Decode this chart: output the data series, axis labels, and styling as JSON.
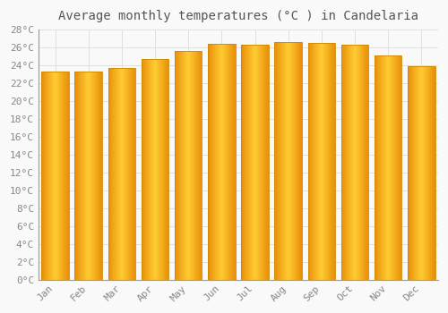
{
  "title": "Average monthly temperatures (°C ) in Candelaria",
  "months": [
    "Jan",
    "Feb",
    "Mar",
    "Apr",
    "May",
    "Jun",
    "Jul",
    "Aug",
    "Sep",
    "Oct",
    "Nov",
    "Dec"
  ],
  "values": [
    23.3,
    23.3,
    23.7,
    24.7,
    25.6,
    26.4,
    26.3,
    26.6,
    26.5,
    26.3,
    25.1,
    23.9
  ],
  "bar_color_left": "#E8900A",
  "bar_color_mid": "#FFCC33",
  "bar_color_right": "#E8900A",
  "bar_edge_color": "#CC8800",
  "ylim": [
    0,
    28
  ],
  "ytick_step": 2,
  "background_color": "#f9f9f9",
  "grid_color": "#e0e0e0",
  "title_fontsize": 10,
  "tick_fontsize": 8,
  "title_color": "#555555",
  "tick_color": "#888888"
}
